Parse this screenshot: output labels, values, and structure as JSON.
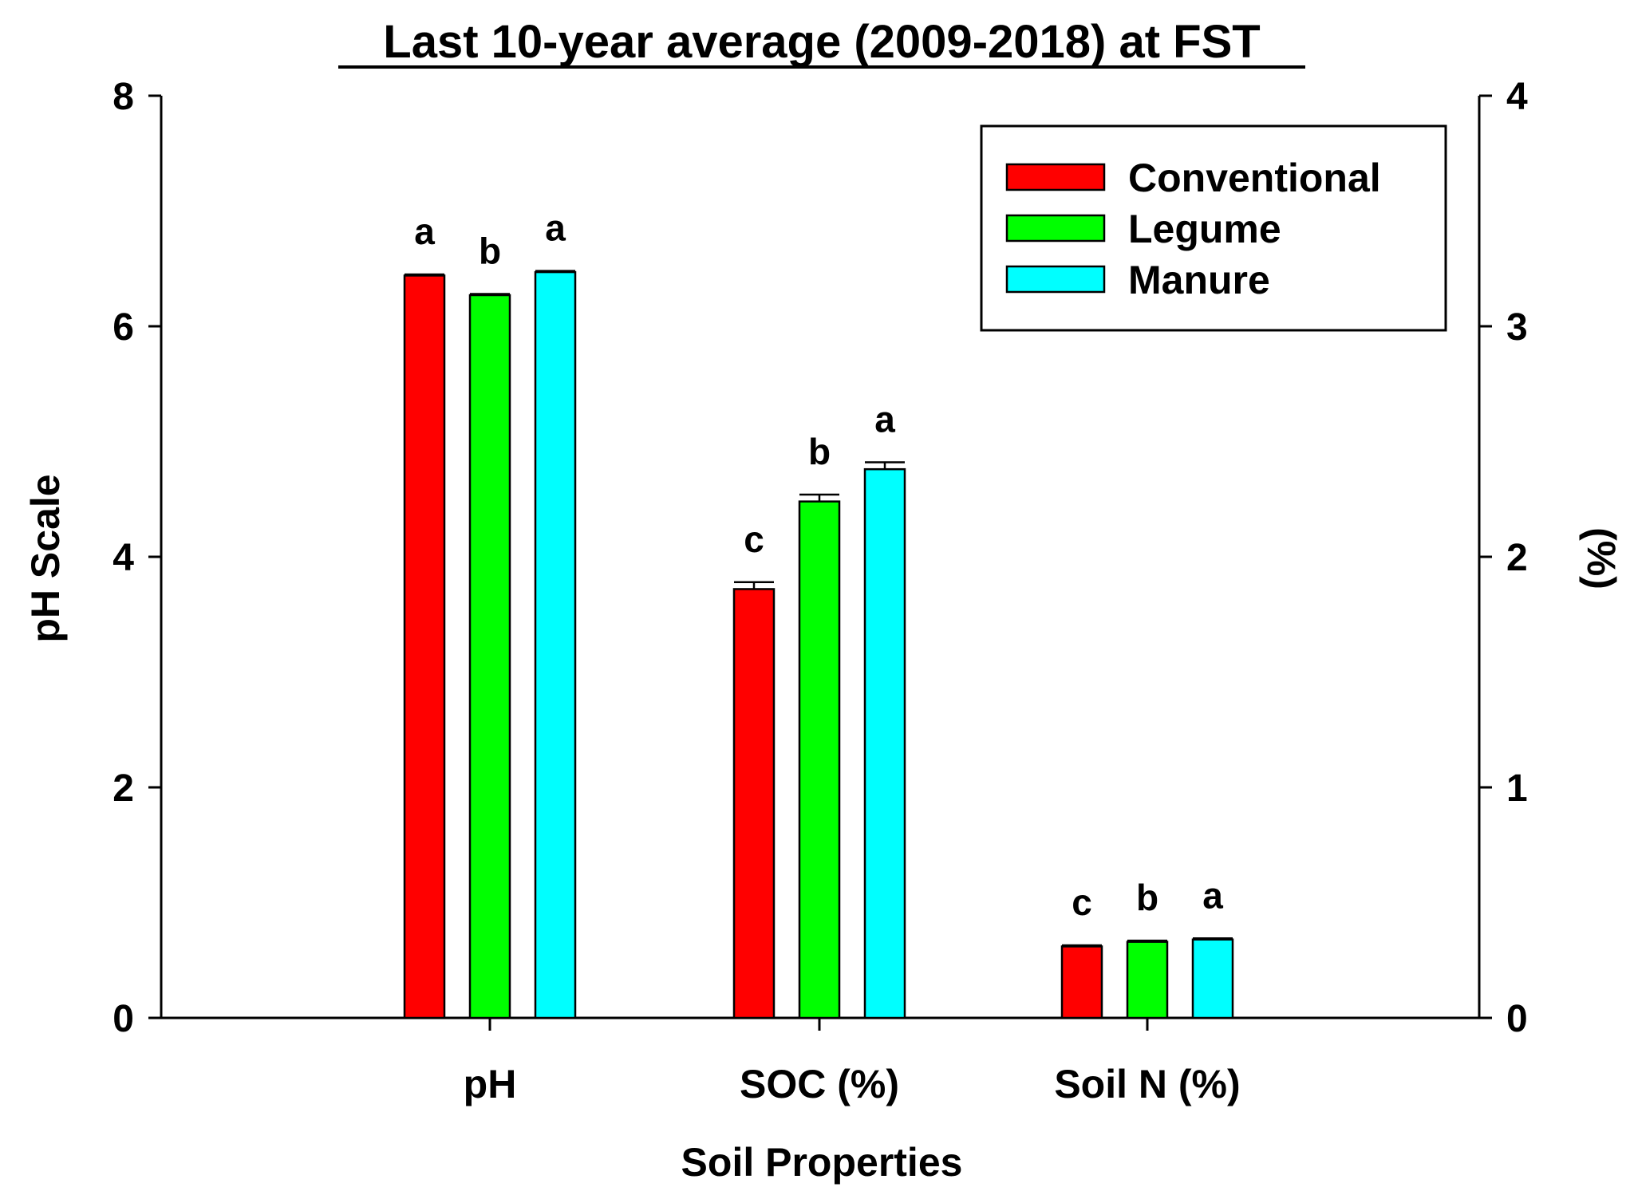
{
  "chart_data": {
    "type": "bar",
    "title": "Last 10-year average (2009-2018) at FST",
    "xlabel": "Soil Properties",
    "ylabel": "pH Scale",
    "y2label": "(%)",
    "ylim": [
      0,
      8
    ],
    "y2lim": [
      0,
      4
    ],
    "yticks": [
      0,
      2,
      4,
      6,
      8
    ],
    "y2ticks": [
      0,
      1,
      2,
      3,
      4
    ],
    "categories": [
      "pH",
      "SOC (%)",
      "Soil N (%)"
    ],
    "category_axis": [
      "left",
      "right",
      "right"
    ],
    "legend_position": "top-right",
    "series": [
      {
        "name": "Conventional",
        "color": "#ff0000",
        "values": [
          6.44,
          1.86,
          0.31
        ],
        "errors": [
          0.01,
          0.03,
          0.005
        ],
        "letters": [
          "a",
          "c",
          "c"
        ]
      },
      {
        "name": "Legume",
        "color": "#00ff00",
        "values": [
          6.27,
          2.24,
          0.33
        ],
        "errors": [
          0.01,
          0.03,
          0.005
        ],
        "letters": [
          "b",
          "b",
          "b"
        ]
      },
      {
        "name": "Manure",
        "color": "#00ffff",
        "values": [
          6.47,
          2.38,
          0.34
        ],
        "errors": [
          0.01,
          0.03,
          0.005
        ],
        "letters": [
          "a",
          "a",
          "a"
        ]
      }
    ]
  }
}
